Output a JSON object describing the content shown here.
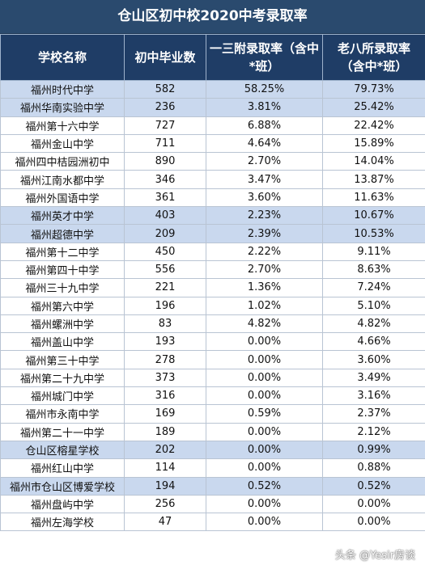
{
  "title": "仓山区初中校2020中考录取率",
  "headers": [
    "学校名称",
    "初中毕业数",
    "一三附录取率（含中*班）",
    "老八所录取率（含中*班）"
  ],
  "rows": [
    {
      "name": "福州时代中学",
      "grads": "582",
      "rate13": "58.25%",
      "rate8": "79.73%",
      "hl": true
    },
    {
      "name": "福州华南实验中学",
      "grads": "236",
      "rate13": "3.81%",
      "rate8": "25.42%",
      "hl": true
    },
    {
      "name": "福州第十六中学",
      "grads": "727",
      "rate13": "6.88%",
      "rate8": "22.42%",
      "hl": false
    },
    {
      "name": "福州金山中学",
      "grads": "711",
      "rate13": "4.64%",
      "rate8": "15.89%",
      "hl": false
    },
    {
      "name": "福州四中桔园洲初中",
      "grads": "890",
      "rate13": "2.70%",
      "rate8": "14.04%",
      "hl": false
    },
    {
      "name": "福州江南水都中学",
      "grads": "346",
      "rate13": "3.47%",
      "rate8": "13.87%",
      "hl": false
    },
    {
      "name": "福州外国语中学",
      "grads": "361",
      "rate13": "3.60%",
      "rate8": "11.63%",
      "hl": false
    },
    {
      "name": "福州英才中学",
      "grads": "403",
      "rate13": "2.23%",
      "rate8": "10.67%",
      "hl": true
    },
    {
      "name": "福州超德中学",
      "grads": "209",
      "rate13": "2.39%",
      "rate8": "10.53%",
      "hl": true
    },
    {
      "name": "福州第十二中学",
      "grads": "450",
      "rate13": "2.22%",
      "rate8": "9.11%",
      "hl": false
    },
    {
      "name": "福州第四十中学",
      "grads": "556",
      "rate13": "2.70%",
      "rate8": "8.63%",
      "hl": false
    },
    {
      "name": "福州三十九中学",
      "grads": "221",
      "rate13": "1.36%",
      "rate8": "7.24%",
      "hl": false
    },
    {
      "name": "福州第六中学",
      "grads": "196",
      "rate13": "1.02%",
      "rate8": "5.10%",
      "hl": false
    },
    {
      "name": "福州螺洲中学",
      "grads": "83",
      "rate13": "4.82%",
      "rate8": "4.82%",
      "hl": false
    },
    {
      "name": "福州盖山中学",
      "grads": "193",
      "rate13": "0.00%",
      "rate8": "4.66%",
      "hl": false
    },
    {
      "name": "福州第三十中学",
      "grads": "278",
      "rate13": "0.00%",
      "rate8": "3.60%",
      "hl": false
    },
    {
      "name": "福州第二十九中学",
      "grads": "373",
      "rate13": "0.00%",
      "rate8": "3.49%",
      "hl": false
    },
    {
      "name": "福州城门中学",
      "grads": "316",
      "rate13": "0.00%",
      "rate8": "3.16%",
      "hl": false
    },
    {
      "name": "福州市永南中学",
      "grads": "169",
      "rate13": "0.59%",
      "rate8": "2.37%",
      "hl": false
    },
    {
      "name": "福州第二十一中学",
      "grads": "189",
      "rate13": "0.00%",
      "rate8": "2.12%",
      "hl": false
    },
    {
      "name": "仓山区榕星学校",
      "grads": "202",
      "rate13": "0.00%",
      "rate8": "0.99%",
      "hl": true
    },
    {
      "name": "福州红山中学",
      "grads": "114",
      "rate13": "0.00%",
      "rate8": "0.88%",
      "hl": false
    },
    {
      "name": "福州市仓山区博爱学校",
      "grads": "194",
      "rate13": "0.52%",
      "rate8": "0.52%",
      "hl": true
    },
    {
      "name": "福州盘屿中学",
      "grads": "256",
      "rate13": "0.00%",
      "rate8": "0.00%",
      "hl": false
    },
    {
      "name": "福州左海学校",
      "grads": "47",
      "rate13": "0.00%",
      "rate8": "0.00%",
      "hl": false
    }
  ],
  "watermark": "头条 @Yesir房谈"
}
